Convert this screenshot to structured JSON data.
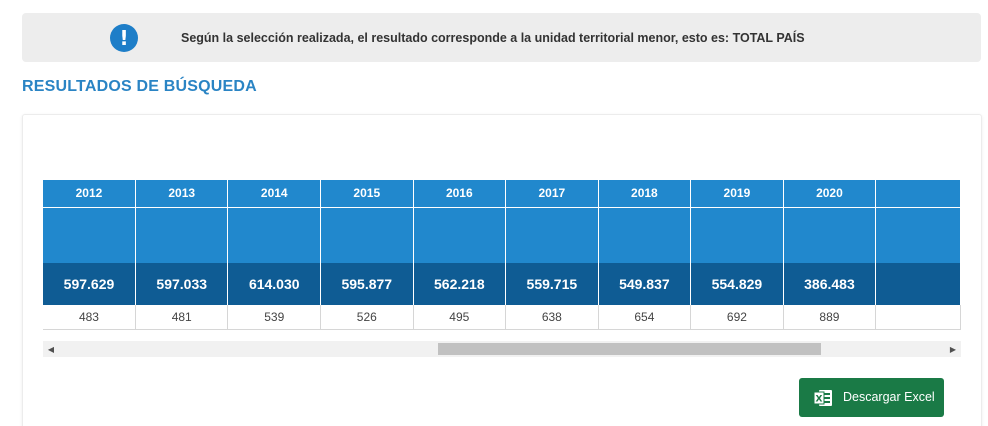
{
  "notice": {
    "icon": "info-icon",
    "text": "Según la selección realizada, el resultado corresponde a la unidad territorial menor, esto es: TOTAL PAÍS"
  },
  "results": {
    "title": "RESULTADOS DE BÚSQUEDA"
  },
  "table": {
    "years": [
      "2012",
      "2013",
      "2014",
      "2015",
      "2016",
      "2017",
      "2018",
      "2019",
      "2020"
    ],
    "totals": [
      "597.629",
      "597.033",
      "614.030",
      "595.877",
      "562.218",
      "559.715",
      "549.837",
      "554.829",
      "386.483"
    ],
    "subvalues": [
      "483",
      "481",
      "539",
      "526",
      "495",
      "638",
      "654",
      "692",
      "889"
    ]
  },
  "scrollbar": {
    "left_icon": "arrow-left-icon",
    "right_icon": "arrow-right-icon"
  },
  "download": {
    "icon": "excel-icon",
    "label": "Descargar Excel"
  }
}
